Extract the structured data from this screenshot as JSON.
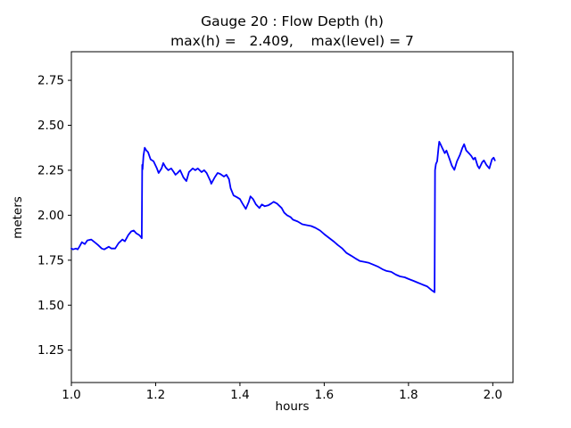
{
  "chart_data": {
    "type": "line",
    "title": "Gauge 20 : Flow Depth (h)",
    "subtitle": "max(h) =   2.409,    max(level) = 7",
    "xlabel": "hours",
    "ylabel": "meters",
    "xlim": [
      1.0,
      2.048
    ],
    "ylim": [
      1.07,
      2.909
    ],
    "x_ticks": [
      1.0,
      1.2,
      1.4,
      1.6,
      1.8,
      2.0
    ],
    "x_tick_labels": [
      "1.0",
      "1.2",
      "1.4",
      "1.6",
      "1.8",
      "2.0"
    ],
    "y_ticks": [
      1.25,
      1.5,
      1.75,
      2.0,
      2.25,
      2.5,
      2.75
    ],
    "y_tick_labels": [
      "1.25",
      "1.50",
      "1.75",
      "2.00",
      "2.25",
      "2.50",
      "2.75"
    ],
    "grid": false,
    "legend": false,
    "max_h": 2.409,
    "max_level": 7,
    "series": [
      {
        "name": "h",
        "color": "#0000ff",
        "width": 1.8,
        "points": [
          [
            1.0,
            1.815
          ],
          [
            1.004,
            1.81
          ],
          [
            1.011,
            1.815
          ],
          [
            1.015,
            1.81
          ],
          [
            1.019,
            1.825
          ],
          [
            1.025,
            1.85
          ],
          [
            1.032,
            1.84
          ],
          [
            1.038,
            1.86
          ],
          [
            1.047,
            1.865
          ],
          [
            1.055,
            1.85
          ],
          [
            1.063,
            1.835
          ],
          [
            1.072,
            1.815
          ],
          [
            1.078,
            1.81
          ],
          [
            1.089,
            1.825
          ],
          [
            1.095,
            1.815
          ],
          [
            1.104,
            1.815
          ],
          [
            1.112,
            1.845
          ],
          [
            1.121,
            1.865
          ],
          [
            1.127,
            1.855
          ],
          [
            1.135,
            1.89
          ],
          [
            1.142,
            1.91
          ],
          [
            1.148,
            1.915
          ],
          [
            1.154,
            1.9
          ],
          [
            1.161,
            1.89
          ],
          [
            1.165,
            1.88
          ],
          [
            1.167,
            1.872
          ],
          [
            1.168,
            2.28
          ],
          [
            1.169,
            2.255
          ],
          [
            1.171,
            2.33
          ],
          [
            1.174,
            2.375
          ],
          [
            1.178,
            2.36
          ],
          [
            1.182,
            2.35
          ],
          [
            1.188,
            2.31
          ],
          [
            1.195,
            2.3
          ],
          [
            1.203,
            2.26
          ],
          [
            1.207,
            2.235
          ],
          [
            1.214,
            2.26
          ],
          [
            1.218,
            2.29
          ],
          [
            1.224,
            2.265
          ],
          [
            1.23,
            2.25
          ],
          [
            1.237,
            2.26
          ],
          [
            1.243,
            2.24
          ],
          [
            1.247,
            2.225
          ],
          [
            1.252,
            2.235
          ],
          [
            1.258,
            2.25
          ],
          [
            1.266,
            2.21
          ],
          [
            1.273,
            2.19
          ],
          [
            1.279,
            2.24
          ],
          [
            1.288,
            2.26
          ],
          [
            1.294,
            2.25
          ],
          [
            1.3,
            2.26
          ],
          [
            1.309,
            2.24
          ],
          [
            1.315,
            2.25
          ],
          [
            1.321,
            2.235
          ],
          [
            1.33,
            2.19
          ],
          [
            1.332,
            2.175
          ],
          [
            1.34,
            2.21
          ],
          [
            1.347,
            2.235
          ],
          [
            1.353,
            2.23
          ],
          [
            1.362,
            2.215
          ],
          [
            1.368,
            2.225
          ],
          [
            1.374,
            2.2
          ],
          [
            1.378,
            2.15
          ],
          [
            1.385,
            2.11
          ],
          [
            1.393,
            2.1
          ],
          [
            1.4,
            2.09
          ],
          [
            1.406,
            2.065
          ],
          [
            1.414,
            2.035
          ],
          [
            1.421,
            2.075
          ],
          [
            1.425,
            2.105
          ],
          [
            1.431,
            2.09
          ],
          [
            1.438,
            2.06
          ],
          [
            1.446,
            2.04
          ],
          [
            1.452,
            2.06
          ],
          [
            1.459,
            2.05
          ],
          [
            1.467,
            2.055
          ],
          [
            1.474,
            2.065
          ],
          [
            1.48,
            2.075
          ],
          [
            1.488,
            2.065
          ],
          [
            1.499,
            2.04
          ],
          [
            1.505,
            2.015
          ],
          [
            1.512,
            2.0
          ],
          [
            1.52,
            1.99
          ],
          [
            1.526,
            1.975
          ],
          [
            1.537,
            1.965
          ],
          [
            1.548,
            1.95
          ],
          [
            1.558,
            1.945
          ],
          [
            1.569,
            1.94
          ],
          [
            1.579,
            1.93
          ],
          [
            1.59,
            1.915
          ],
          [
            1.6,
            1.895
          ],
          [
            1.611,
            1.875
          ],
          [
            1.622,
            1.855
          ],
          [
            1.632,
            1.835
          ],
          [
            1.643,
            1.815
          ],
          [
            1.653,
            1.79
          ],
          [
            1.664,
            1.775
          ],
          [
            1.674,
            1.76
          ],
          [
            1.685,
            1.745
          ],
          [
            1.696,
            1.74
          ],
          [
            1.706,
            1.735
          ],
          [
            1.717,
            1.725
          ],
          [
            1.727,
            1.715
          ],
          [
            1.738,
            1.7
          ],
          [
            1.748,
            1.69
          ],
          [
            1.759,
            1.685
          ],
          [
            1.77,
            1.67
          ],
          [
            1.78,
            1.66
          ],
          [
            1.791,
            1.655
          ],
          [
            1.801,
            1.645
          ],
          [
            1.812,
            1.635
          ],
          [
            1.822,
            1.625
          ],
          [
            1.833,
            1.615
          ],
          [
            1.844,
            1.605
          ],
          [
            1.854,
            1.585
          ],
          [
            1.86,
            1.575
          ],
          [
            1.862,
            1.572
          ],
          [
            1.863,
            2.25
          ],
          [
            1.865,
            2.285
          ],
          [
            1.868,
            2.3
          ],
          [
            1.871,
            2.37
          ],
          [
            1.873,
            2.409
          ],
          [
            1.877,
            2.39
          ],
          [
            1.88,
            2.375
          ],
          [
            1.886,
            2.345
          ],
          [
            1.89,
            2.36
          ],
          [
            1.897,
            2.315
          ],
          [
            1.903,
            2.275
          ],
          [
            1.909,
            2.252
          ],
          [
            1.915,
            2.3
          ],
          [
            1.922,
            2.335
          ],
          [
            1.928,
            2.375
          ],
          [
            1.932,
            2.395
          ],
          [
            1.937,
            2.36
          ],
          [
            1.941,
            2.35
          ],
          [
            1.945,
            2.34
          ],
          [
            1.949,
            2.33
          ],
          [
            1.954,
            2.31
          ],
          [
            1.958,
            2.32
          ],
          [
            1.964,
            2.275
          ],
          [
            1.968,
            2.26
          ],
          [
            1.975,
            2.295
          ],
          [
            1.979,
            2.305
          ],
          [
            1.985,
            2.28
          ],
          [
            1.992,
            2.26
          ],
          [
            1.998,
            2.31
          ],
          [
            2.002,
            2.32
          ],
          [
            2.005,
            2.305
          ]
        ]
      }
    ]
  }
}
